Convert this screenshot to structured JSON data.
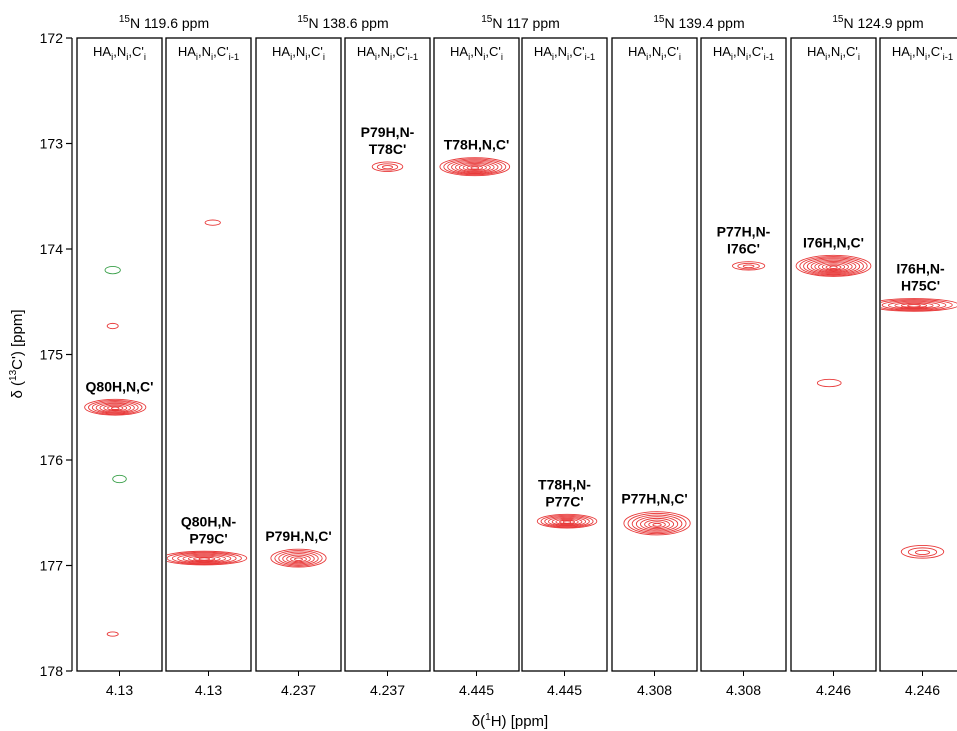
{
  "chart_data": {
    "type": "scatter",
    "xlabel": {
      "prefix": "δ(",
      "sup": "1",
      "suffix": "H) [ppm]"
    },
    "ylabel": {
      "prefix": "δ (",
      "sup": "13",
      "suffix": "C') [ppm]"
    },
    "ylim": [
      172,
      178
    ],
    "yticks": [
      "172",
      "173",
      "174",
      "175",
      "176",
      "177",
      "178"
    ],
    "y_inverted": true,
    "groups": [
      {
        "title": {
          "sup": "15",
          "text": "N 119.6 ppm"
        }
      },
      {
        "title": {
          "sup": "15",
          "text": "N 138.6 ppm"
        }
      },
      {
        "title": {
          "sup": "15",
          "text": "N 117 ppm"
        }
      },
      {
        "title": {
          "sup": "15",
          "text": "N 139.4 ppm"
        }
      },
      {
        "title": {
          "sup": "15",
          "text": "N 124.9 ppm"
        }
      }
    ],
    "strips": [
      {
        "x_tick": "4.13",
        "header": {
          "a": "HA",
          "b": "i",
          "c": ",N",
          "d": "i",
          "e": ",C'",
          "f": "i"
        },
        "peaks": [
          {
            "y": 175.5,
            "x_offset": -0.05,
            "w": 0.72,
            "h": 0.15,
            "color": "#e83a3a",
            "rings": 8,
            "label": [
              "Q80H,N,C'"
            ]
          },
          {
            "y": 174.2,
            "x_offset": -0.08,
            "w": 0.18,
            "h": 0.07,
            "color": "#3aa04a",
            "rings": 1
          },
          {
            "y": 174.73,
            "x_offset": -0.08,
            "w": 0.13,
            "h": 0.05,
            "color": "#e83a3a",
            "rings": 1
          },
          {
            "y": 176.18,
            "x_offset": 0.0,
            "w": 0.16,
            "h": 0.07,
            "color": "#3aa04a",
            "rings": 1
          },
          {
            "y": 177.65,
            "x_offset": -0.08,
            "w": 0.13,
            "h": 0.04,
            "color": "#e83a3a",
            "rings": 1
          }
        ]
      },
      {
        "x_tick": "4.13",
        "header": {
          "a": "HA",
          "b": "i",
          "c": ",N",
          "d": "i",
          "e": ",C'",
          "f": "i-1"
        },
        "peaks": [
          {
            "y": 176.93,
            "x_offset": -0.05,
            "w": 1.0,
            "h": 0.13,
            "color": "#e83a3a",
            "rings": 8,
            "label": [
              "Q80H,N-",
              "P79C'"
            ]
          },
          {
            "y": 173.75,
            "x_offset": 0.05,
            "w": 0.18,
            "h": 0.05,
            "color": "#e83a3a",
            "rings": 1
          }
        ]
      },
      {
        "x_tick": "4.237",
        "header": {
          "a": "HA",
          "b": "i",
          "c": ",N",
          "d": "i",
          "e": ",C'",
          "f": "i"
        },
        "peaks": [
          {
            "y": 176.93,
            "x_offset": 0.0,
            "w": 0.65,
            "h": 0.17,
            "color": "#e83a3a",
            "rings": 7,
            "label": [
              "P79H,N,C'"
            ]
          }
        ]
      },
      {
        "x_tick": "4.237",
        "header": {
          "a": "HA",
          "b": "i",
          "c": ",N",
          "d": "i",
          "e": ",C'",
          "f": "i-1"
        },
        "peaks": [
          {
            "y": 173.22,
            "x_offset": 0.0,
            "w": 0.36,
            "h": 0.09,
            "color": "#e83a3a",
            "rings": 3,
            "label": [
              "P79H,N-",
              "T78C'"
            ]
          }
        ]
      },
      {
        "x_tick": "4.445",
        "header": {
          "a": "HA",
          "b": "i",
          "c": ",N",
          "d": "i",
          "e": ",C'",
          "f": "i"
        },
        "peaks": [
          {
            "y": 173.22,
            "x_offset": -0.02,
            "w": 0.82,
            "h": 0.17,
            "color": "#e83a3a",
            "rings": 9,
            "label": [
              "T78H,N,C'"
            ]
          }
        ]
      },
      {
        "x_tick": "4.445",
        "header": {
          "a": "HA",
          "b": "i",
          "c": ",N",
          "d": "i",
          "e": ",C'",
          "f": "i-1"
        },
        "peaks": [
          {
            "y": 176.58,
            "x_offset": 0.03,
            "w": 0.7,
            "h": 0.13,
            "color": "#e83a3a",
            "rings": 8,
            "label": [
              "T78H,N-",
              "P77C'"
            ]
          }
        ]
      },
      {
        "x_tick": "4.308",
        "header": {
          "a": "HA",
          "b": "i",
          "c": ",N",
          "d": "i",
          "e": ",C'",
          "f": "i"
        },
        "peaks": [
          {
            "y": 176.6,
            "x_offset": 0.03,
            "w": 0.78,
            "h": 0.22,
            "color": "#e83a3a",
            "rings": 8,
            "label": [
              "P77H,N,C'"
            ]
          }
        ]
      },
      {
        "x_tick": "4.308",
        "header": {
          "a": "HA",
          "b": "i",
          "c": ",N",
          "d": "i",
          "e": ",C'",
          "f": "i-1"
        },
        "peaks": [
          {
            "y": 174.16,
            "x_offset": 0.06,
            "w": 0.38,
            "h": 0.08,
            "color": "#e83a3a",
            "rings": 3,
            "label": [
              "P77H,N-",
              "I76C'"
            ]
          }
        ]
      },
      {
        "x_tick": "4.246",
        "header": {
          "a": "HA",
          "b": "i",
          "c": ",N",
          "d": "i",
          "e": ",C'",
          "f": "i"
        },
        "peaks": [
          {
            "y": 174.16,
            "x_offset": 0.0,
            "w": 0.88,
            "h": 0.2,
            "color": "#e83a3a",
            "rings": 10,
            "label": [
              "I76H,N,C'"
            ]
          },
          {
            "y": 175.27,
            "x_offset": -0.05,
            "w": 0.28,
            "h": 0.07,
            "color": "#e83a3a",
            "rings": 1
          },
          {
            "y": 176.82,
            "x_offset": 0.9,
            "w": 0.8,
            "h": 0.17,
            "color": "#e83a3a",
            "rings": 5
          }
        ]
      },
      {
        "x_tick": "4.246",
        "header": {
          "a": "HA",
          "b": "i",
          "c": ",N",
          "d": "i",
          "e": ",C'",
          "f": "i-1"
        },
        "peaks": [
          {
            "y": 174.53,
            "x_offset": -0.1,
            "w": 1.05,
            "h": 0.12,
            "color": "#e83a3a",
            "rings": 7,
            "label": [
              "I76H,N-",
              "H75C'"
            ]
          },
          {
            "y": 176.87,
            "x_offset": 0.0,
            "w": 0.5,
            "h": 0.12,
            "color": "#e83a3a",
            "rings": 3
          }
        ]
      }
    ]
  }
}
